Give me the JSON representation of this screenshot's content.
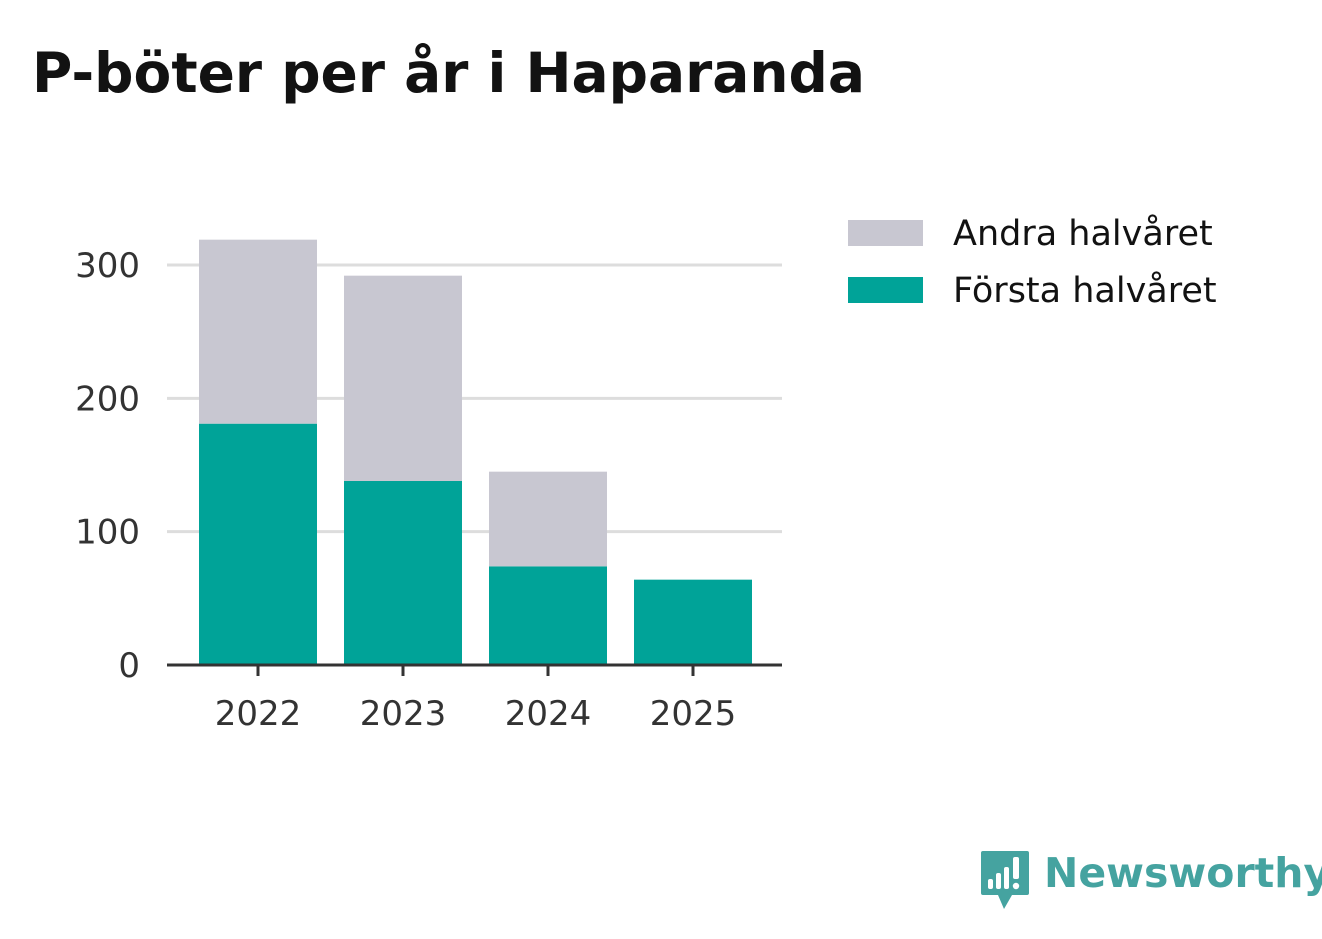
{
  "chart_data": {
    "type": "bar",
    "stacked": true,
    "title": "P-böter per år i Haparanda",
    "xlabel": "",
    "ylabel": "",
    "categories": [
      "2022",
      "2023",
      "2024",
      "2025"
    ],
    "series": [
      {
        "name": "Första halvåret",
        "color": "#00a398",
        "values": [
          181,
          138,
          74,
          64
        ]
      },
      {
        "name": "Andra halvåret",
        "color": "#c8c7d1",
        "values": [
          138,
          154,
          71,
          0
        ]
      }
    ],
    "ylim": [
      0,
      320
    ],
    "yticks": [
      0,
      100,
      200,
      300
    ],
    "grid": true,
    "legend_position": "right",
    "legend_order": [
      "Andra halvåret",
      "Första halvåret"
    ]
  },
  "brand": {
    "name": "Newsworthy",
    "color": "#45a3a0",
    "icon": "newsworthy-logo-icon"
  }
}
